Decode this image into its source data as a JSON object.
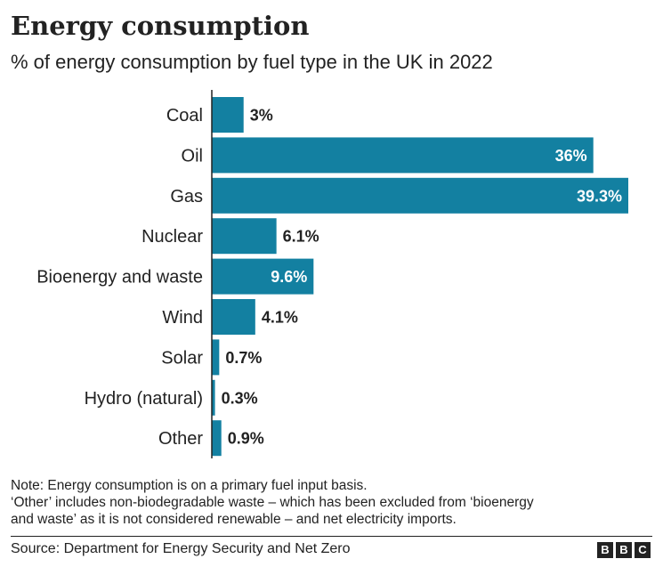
{
  "header": {
    "title": "Energy consumption",
    "subtitle": "% of energy consumption by fuel type in the UK in 2022"
  },
  "notes": {
    "line1": "Note: Energy consumption is on a primary fuel input basis.",
    "line2": "‘Other’ includes non-biodegradable waste – which has been excluded from ‘bioenergy",
    "line3": "and waste’ as it is not considered renewable – and net electricity imports."
  },
  "footer": {
    "source": "Source: Department for Energy Security and Net Zero",
    "logo": [
      "B",
      "B",
      "C"
    ]
  },
  "chart_data": {
    "type": "bar",
    "orientation": "horizontal",
    "title": "Energy consumption",
    "subtitle": "% of energy consumption by fuel type in the UK in 2022",
    "categories": [
      "Coal",
      "Oil",
      "Gas",
      "Nuclear",
      "Bioenergy and waste",
      "Wind",
      "Solar",
      "Hydro (natural)",
      "Other"
    ],
    "values": [
      3,
      36,
      39.3,
      6.1,
      9.6,
      4.1,
      0.7,
      0.3,
      0.9
    ],
    "value_labels": [
      "3%",
      "36%",
      "39.3%",
      "6.1%",
      "9.6%",
      "4.1%",
      "0.7%",
      "0.3%",
      "0.9%"
    ],
    "xlim": [
      0,
      39.3
    ],
    "grid": false,
    "bar_color": "#1380a1",
    "label_inside_color": "#ffffff",
    "label_outside_color": "#222222"
  }
}
